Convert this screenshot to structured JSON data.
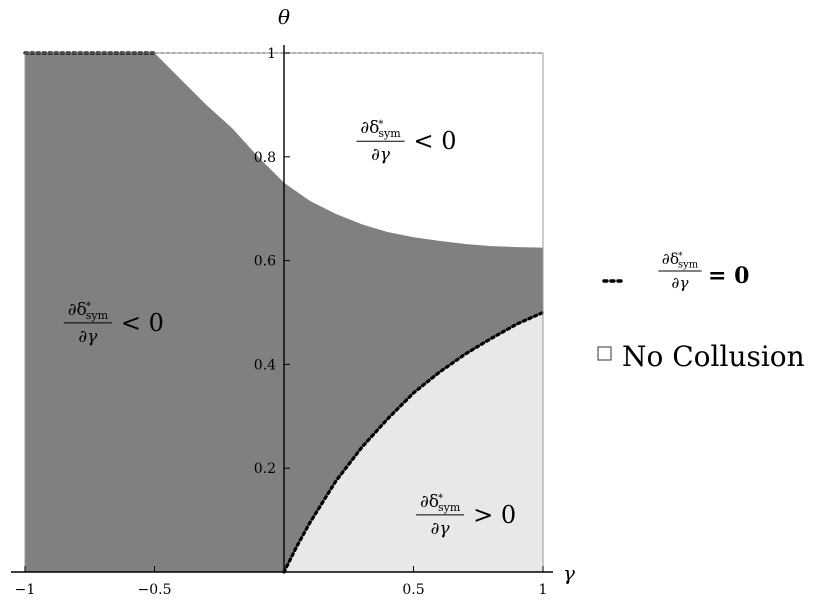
{
  "chart_data": {
    "type": "area",
    "x_axis": {
      "label": "γ",
      "range": [
        -1,
        1
      ],
      "ticks": [
        -1,
        -0.5,
        0.5,
        1
      ],
      "tick_labels": [
        "−1",
        "−0.5",
        "0.5",
        "1"
      ]
    },
    "y_axis": {
      "label": "θ",
      "range": [
        0,
        1
      ],
      "ticks": [
        0.2,
        0.4,
        0.6,
        0.8,
        1
      ],
      "tick_labels": [
        "0.2",
        "0.4",
        "0.6",
        "0.8",
        "1"
      ]
    },
    "boundaries": {
      "upper": {
        "x": [
          -0.5,
          -0.4,
          -0.3,
          -0.2,
          -0.1,
          0,
          0.1,
          0.2,
          0.3,
          0.4,
          0.5,
          0.6,
          0.7,
          0.8,
          0.9,
          1.0
        ],
        "y": [
          1.0,
          0.95,
          0.9,
          0.855,
          0.8,
          0.75,
          0.715,
          0.69,
          0.67,
          0.655,
          0.645,
          0.638,
          0.632,
          0.628,
          0.626,
          0.625
        ]
      },
      "lower": {
        "x": [
          0,
          0.05,
          0.1,
          0.15,
          0.2,
          0.3,
          0.4,
          0.5,
          0.6,
          0.7,
          0.8,
          0.9,
          1.0
        ],
        "y": [
          0.0,
          0.05,
          0.095,
          0.135,
          0.175,
          0.24,
          0.295,
          0.345,
          0.385,
          0.42,
          0.45,
          0.478,
          0.5
        ]
      },
      "top_dotted": {
        "x": [
          -1,
          -0.5
        ],
        "y": [
          1,
          1
        ]
      }
    },
    "regions": [
      {
        "id": "white-region",
        "color": "#ffffff"
      },
      {
        "id": "dark-region",
        "color": "#808080"
      },
      {
        "id": "light-region",
        "color": "#e8e8e8"
      }
    ],
    "region_labels": [
      {
        "id": "label-upper-right",
        "region": "white-region",
        "num": "∂δ*sym",
        "den": "∂γ",
        "rel": "< 0",
        "at": [
          0.45,
          0.83
        ]
      },
      {
        "id": "label-left",
        "region": "dark-region",
        "num": "∂δ*sym",
        "den": "∂γ",
        "rel": "< 0",
        "at": [
          -0.68,
          0.48
        ]
      },
      {
        "id": "label-lower-right",
        "region": "light-region",
        "num": "∂δ*sym",
        "den": "∂γ",
        "rel": "> 0",
        "at": [
          0.68,
          0.11
        ]
      }
    ],
    "legend": {
      "placement": "right",
      "entries": [
        {
          "marker": "dotted-line",
          "num": "∂δ*sym",
          "den": "∂γ",
          "rel": "= 0"
        },
        {
          "marker": "open-square",
          "label": "No Collusion"
        }
      ]
    }
  }
}
